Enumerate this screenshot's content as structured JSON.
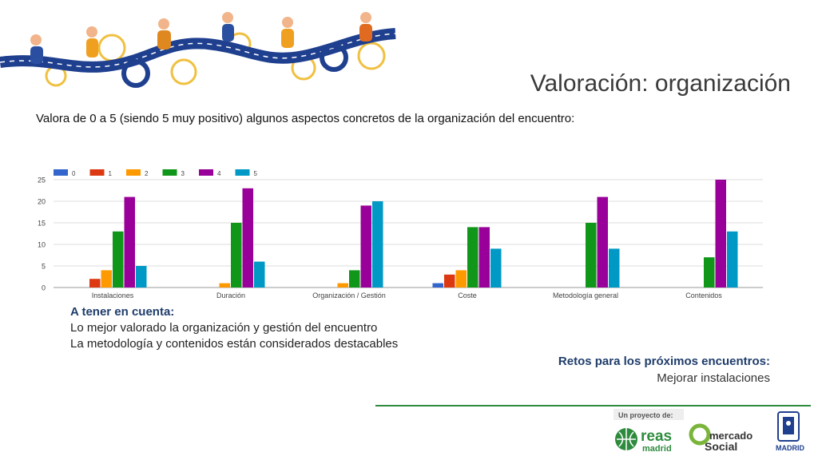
{
  "slide": {
    "title": "Valoración: organización",
    "subtitle": "Valora de  0 a 5 (siendo 5 muy positivo)  algunos aspectos concretos de la organización del encuentro:"
  },
  "notes": {
    "heading": "A tener en cuenta:",
    "lines": [
      "Lo mejor valorado la organización y gestión del encuentro",
      "La metodología y contenidos están considerados destacables"
    ]
  },
  "retos": {
    "heading": "Retos para los próximos encuentros:",
    "item": "Mejorar instalaciones"
  },
  "footer": {
    "project_label": "Un proyecto de:",
    "logo1_line1": "reas",
    "logo1_line2": "madrid",
    "logo2_line1": "mercado",
    "logo2_line2": "Social",
    "logo3_label": "MADRID"
  },
  "chart_data": {
    "type": "bar",
    "categories": [
      "Instalaciones",
      "Duración",
      "Organización / Gestión",
      "Coste",
      "Metodología general",
      "Contenidos"
    ],
    "series": [
      {
        "name": "0",
        "color": "#3366cc",
        "values": [
          0,
          0,
          0,
          1,
          0,
          0
        ]
      },
      {
        "name": "1",
        "color": "#dc3912",
        "values": [
          2,
          0,
          0,
          3,
          0,
          0
        ]
      },
      {
        "name": "2",
        "color": "#ff9900",
        "values": [
          4,
          1,
          1,
          4,
          0,
          0
        ]
      },
      {
        "name": "3",
        "color": "#109618",
        "values": [
          13,
          15,
          4,
          14,
          15,
          7
        ]
      },
      {
        "name": "4",
        "color": "#990099",
        "values": [
          21,
          23,
          19,
          14,
          21,
          25
        ]
      },
      {
        "name": "5",
        "color": "#0099c6",
        "values": [
          5,
          6,
          20,
          9,
          9,
          13
        ]
      }
    ],
    "yticks": [
      0,
      5,
      10,
      15,
      20,
      25
    ],
    "ylim": [
      0,
      25
    ],
    "grid": true,
    "legend": "top-left"
  }
}
